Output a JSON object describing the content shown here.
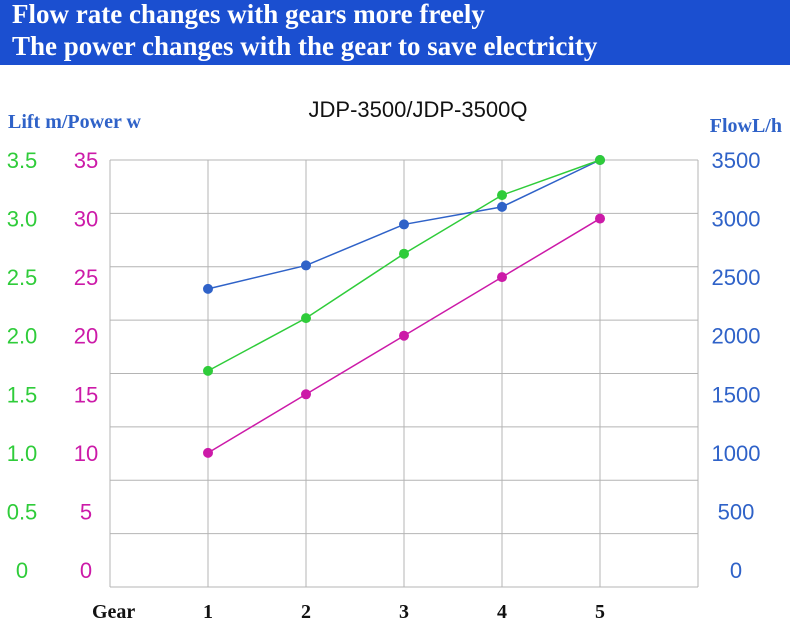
{
  "banner": {
    "line1": "Flow rate changes with gears more freely",
    "line2": "The power changes with the gear to save electricity"
  },
  "colors": {
    "banner_bg": "#1b4fd0",
    "lift": "#2fcc3a",
    "power": "#cc1aa8",
    "flow": "#2f62c8",
    "grid": "#b4b4b4"
  },
  "chart_data": {
    "type": "line",
    "title": "JDP-3500/JDP-3500Q",
    "left_axis_label": "Lift m/Power w",
    "right_axis_label": "FlowL/h",
    "xlabel": "Gear",
    "categories": [
      "1",
      "2",
      "3",
      "4",
      "5"
    ],
    "lift_ticks": [
      "0",
      "0.5",
      "1.0",
      "1.5",
      "2.0",
      "2.5",
      "3.0",
      "3.5"
    ],
    "power_ticks": [
      "0",
      "5",
      "10",
      "15",
      "20",
      "25",
      "30",
      "35"
    ],
    "flow_ticks": [
      "0",
      "500",
      "1000",
      "1500",
      "2000",
      "2500",
      "3000",
      "3500"
    ],
    "ylim_lift": [
      0,
      3.5
    ],
    "ylim_power": [
      0,
      35
    ],
    "ylim_flow": [
      0,
      3500
    ],
    "series": [
      {
        "name": "Lift",
        "axis": "lift",
        "color": "#2fcc3a",
        "values": [
          1.7,
          2.15,
          2.7,
          3.2,
          3.5
        ]
      },
      {
        "name": "Power",
        "axis": "power",
        "color": "#cc1aa8",
        "values": [
          10,
          15,
          20,
          25,
          30
        ]
      },
      {
        "name": "Flow",
        "axis": "flow",
        "color": "#2f62c8",
        "values": [
          2400,
          2600,
          2950,
          3100,
          3500
        ]
      }
    ]
  }
}
